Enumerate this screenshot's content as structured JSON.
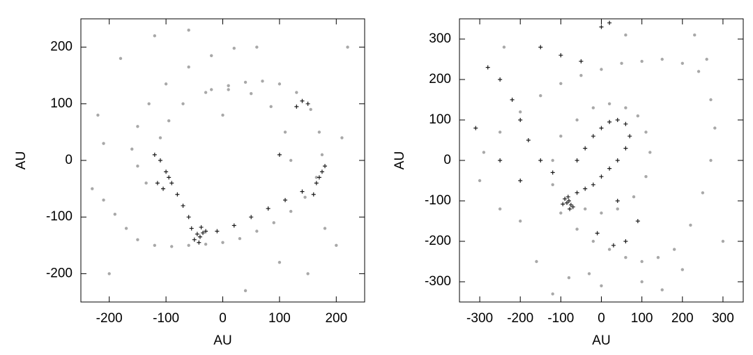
{
  "chart_data": [
    {
      "type": "scatter",
      "xlabel": "AU",
      "ylabel": "AU",
      "xlim": [
        -250,
        250
      ],
      "ylim": [
        -250,
        250
      ],
      "xticks": [
        -200,
        -100,
        0,
        100,
        200
      ],
      "yticks": [
        -200,
        -100,
        0,
        100,
        200
      ],
      "series": [
        {
          "color": "#a8a8a8",
          "marker": "dot",
          "x": [
            -230,
            -210,
            -190,
            -170,
            -150,
            -120,
            -90,
            -60,
            -30,
            0,
            30,
            60,
            90,
            120,
            145,
            165,
            175,
            170,
            155,
            130,
            100,
            70,
            40,
            10,
            -20,
            60,
            20,
            -20,
            -60,
            -100,
            -130,
            -150,
            -160,
            -150,
            -135,
            120,
            110,
            85,
            50,
            10,
            -30,
            -70,
            -95,
            -110,
            -210,
            -220,
            200,
            210,
            -200,
            150,
            -60,
            40,
            220,
            -180,
            0,
            100,
            -120,
            180
          ],
          "y": [
            -50,
            -70,
            -95,
            -120,
            -140,
            -150,
            -152,
            -150,
            -148,
            -145,
            -138,
            -125,
            -110,
            -90,
            -65,
            -30,
            10,
            50,
            90,
            120,
            135,
            140,
            138,
            132,
            125,
            200,
            198,
            185,
            165,
            135,
            100,
            60,
            20,
            -10,
            -40,
            0,
            50,
            95,
            118,
            125,
            120,
            100,
            70,
            40,
            30,
            80,
            -150,
            40,
            -200,
            -200,
            230,
            -230,
            200,
            180,
            80,
            -180,
            220,
            -120
          ]
        },
        {
          "color": "#1a1a1a",
          "marker": "cross",
          "x": [
            -45,
            -40,
            -35,
            -50,
            -30,
            -55,
            -42,
            -38,
            -120,
            -110,
            -100,
            -95,
            -90,
            -80,
            -70,
            -60,
            -115,
            -105,
            170,
            175,
            165,
            180,
            160,
            140,
            150,
            130,
            -10,
            20,
            50,
            80,
            110,
            140,
            100
          ],
          "y": [
            -130,
            -135,
            -128,
            -140,
            -125,
            -120,
            -145,
            -118,
            10,
            0,
            -20,
            -30,
            -40,
            -60,
            -80,
            -100,
            -40,
            -50,
            -30,
            -20,
            -40,
            -10,
            -60,
            105,
            100,
            95,
            -125,
            -115,
            -100,
            -85,
            -70,
            -55,
            10
          ]
        }
      ]
    },
    {
      "type": "scatter",
      "xlabel": "AU",
      "ylabel": "AU",
      "xlim": [
        -350,
        350
      ],
      "ylim": [
        -350,
        350
      ],
      "xticks": [
        -300,
        -200,
        -100,
        0,
        100,
        200,
        300
      ],
      "yticks": [
        -300,
        -200,
        -100,
        0,
        100,
        200,
        300
      ],
      "series": [
        {
          "color": "#a8a8a8",
          "marker": "dot",
          "x": [
            -290,
            -250,
            -200,
            -150,
            -100,
            -50,
            0,
            50,
            100,
            150,
            200,
            240,
            270,
            280,
            270,
            250,
            220,
            180,
            140,
            100,
            60,
            20,
            -20,
            -60,
            -100,
            -120,
            -120,
            -100,
            -60,
            -20,
            20,
            60,
            90,
            110,
            120,
            110,
            80,
            40,
            0,
            -40,
            -200,
            -250,
            -160,
            -80,
            0,
            100,
            200,
            260,
            -300,
            300,
            -240,
            60,
            -120,
            230,
            -30,
            150
          ],
          "y": [
            20,
            70,
            120,
            160,
            190,
            210,
            225,
            240,
            245,
            250,
            240,
            220,
            150,
            80,
            0,
            -80,
            -160,
            -220,
            -240,
            -250,
            -240,
            -220,
            -200,
            -170,
            -130,
            -60,
            0,
            60,
            100,
            130,
            140,
            130,
            110,
            70,
            20,
            -40,
            -90,
            -120,
            -130,
            -120,
            -150,
            -120,
            -250,
            -290,
            -310,
            -300,
            -270,
            250,
            -50,
            -200,
            280,
            310,
            -330,
            310,
            -280,
            -320
          ]
        },
        {
          "color": "#1a1a1a",
          "marker": "cross",
          "x": [
            -85,
            -80,
            -75,
            -90,
            -70,
            -95,
            -82,
            -78,
            -60,
            -40,
            -20,
            0,
            20,
            40,
            60,
            70,
            60,
            40,
            20,
            0,
            -20,
            -40,
            -60,
            -120,
            -150,
            -180,
            -200,
            -220,
            -250,
            -280,
            -310,
            -150,
            -100,
            -50,
            0,
            20,
            30,
            -250,
            -200,
            60,
            90,
            -10,
            40
          ],
          "y": [
            -105,
            -100,
            -110,
            -95,
            -115,
            -108,
            -90,
            -120,
            -80,
            -70,
            -60,
            -40,
            -20,
            0,
            30,
            60,
            90,
            100,
            95,
            80,
            60,
            30,
            0,
            -30,
            0,
            50,
            100,
            150,
            200,
            230,
            80,
            280,
            260,
            245,
            330,
            340,
            -210,
            0,
            -50,
            -200,
            -150,
            -180,
            -100
          ]
        }
      ]
    }
  ]
}
